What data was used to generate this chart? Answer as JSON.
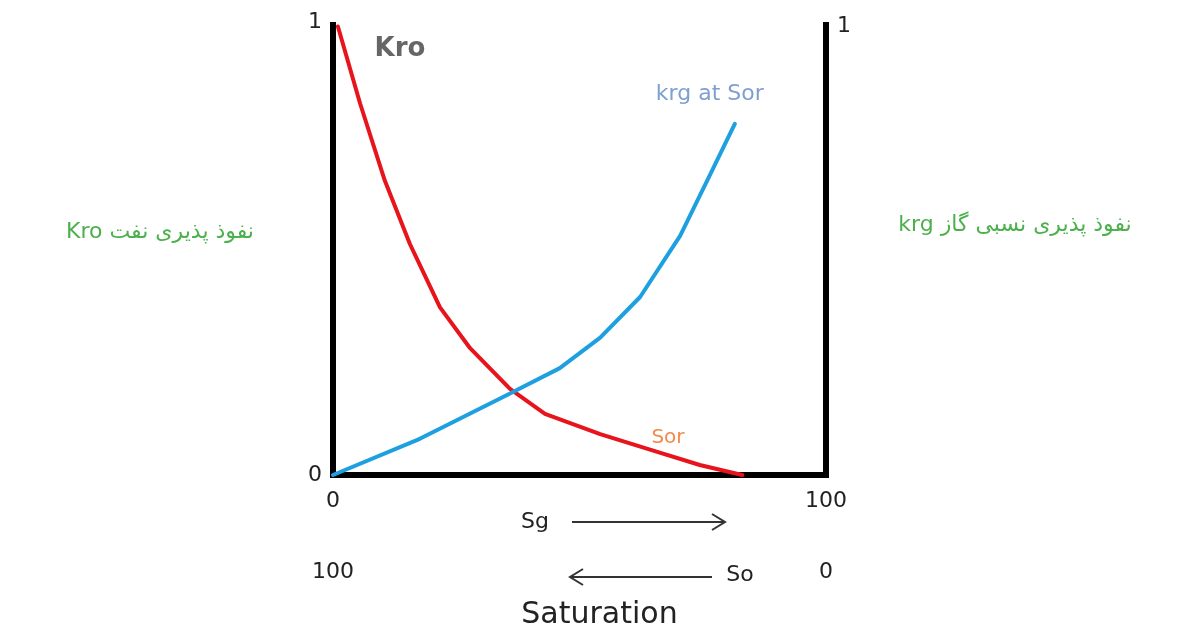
{
  "chart_data": {
    "type": "line",
    "xlabel": "Saturation",
    "ylabel": "نفوذ پذیری نفت Kro",
    "y2label": "نفوذ پذیری نسبی گاز krg",
    "xlim": [
      0,
      100
    ],
    "xticks": [
      0,
      100
    ],
    "x2lim": [
      100,
      0
    ],
    "x2ticks": [
      100,
      0
    ],
    "ylim": [
      0,
      1
    ],
    "yticks": [
      0,
      1
    ],
    "series": [
      {
        "name": "Kro",
        "color": "#e8141c",
        "x": [
          1,
          5.5,
          10.5,
          15.6,
          21.7,
          27.8,
          35.9,
          43,
          54.2,
          64.3,
          74.4,
          83
        ],
        "values": [
          0.99,
          0.82,
          0.65,
          0.51,
          0.37,
          0.28,
          0.19,
          0.135,
          0.09,
          0.056,
          0.022,
          0
        ]
      },
      {
        "name": "krg at Sor",
        "color": "#1ea0e0",
        "x": [
          0,
          17.6,
          35.9,
          46,
          54.2,
          62.3,
          70.4,
          76.5,
          81.5
        ],
        "values": [
          0,
          0.08,
          0.18,
          0.236,
          0.303,
          0.393,
          0.528,
          0.663,
          0.775
        ]
      }
    ],
    "annotations": [
      "Sor",
      "Sg",
      "So",
      "1"
    ],
    "marker": "none",
    "line_style": "solid",
    "grid": false
  }
}
